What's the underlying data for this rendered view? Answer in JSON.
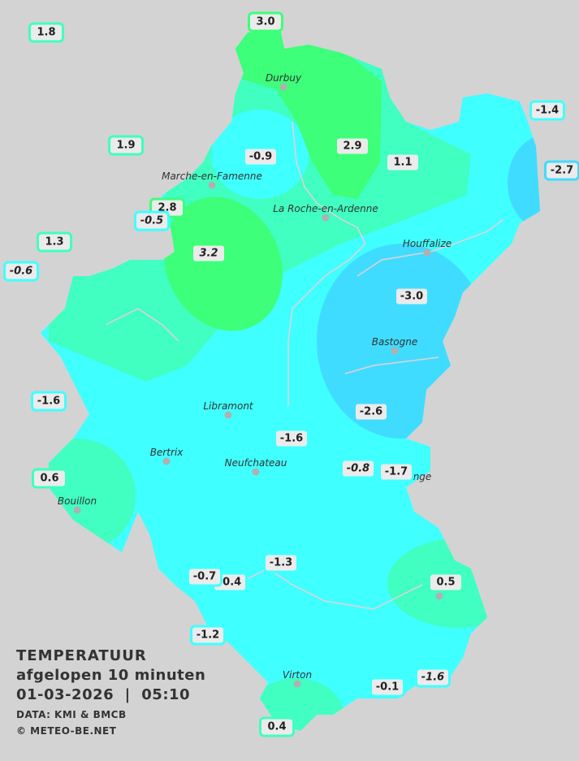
{
  "title": {
    "line1": "TEMPERATUUR",
    "line2": "afgelopen 10 minuten",
    "line3": "01-03-2026  |  05:10",
    "source": "DATA: KMI & BMCB",
    "copyright": "© METEO-BE.NET"
  },
  "colors": {
    "background": "#d3d3d3",
    "band_green": "#3dff7a",
    "band_mint": "#40ffc0",
    "band_cyan": "#40ffff",
    "band_blue": "#40dcff",
    "label_fill": "#ebebeb"
  },
  "cities": [
    {
      "name": "Durbuy"
    },
    {
      "name": "Marche-en-Famenne"
    },
    {
      "name": "La Roche-en-Ardenne"
    },
    {
      "name": "Houffalize"
    },
    {
      "name": "Bastogne"
    },
    {
      "name": "Libramont"
    },
    {
      "name": "Bertrix"
    },
    {
      "name": "Neufchateau"
    },
    {
      "name": "Bouillon"
    },
    {
      "name": "Virton"
    },
    {
      "name": "nge"
    }
  ],
  "stations": [
    {
      "value": "1.8",
      "band": "mint",
      "italic": false
    },
    {
      "value": "3.0",
      "band": "green",
      "italic": false
    },
    {
      "value": "1.9",
      "band": "mint",
      "italic": false
    },
    {
      "value": "-0.9",
      "band": "cyan",
      "italic": false
    },
    {
      "value": "2.9",
      "band": "green",
      "italic": false
    },
    {
      "value": "1.1",
      "band": "mint",
      "italic": false
    },
    {
      "value": "-1.4",
      "band": "cyan",
      "italic": false
    },
    {
      "value": "-2.7",
      "band": "blue",
      "italic": false
    },
    {
      "value": "2.8",
      "band": "green",
      "italic": false
    },
    {
      "value": "-0.5",
      "band": "cyan",
      "italic": true
    },
    {
      "value": "1.3",
      "band": "mint",
      "italic": false
    },
    {
      "value": "-0.6",
      "band": "cyan",
      "italic": true
    },
    {
      "value": "3.2",
      "band": "green",
      "italic": true
    },
    {
      "value": "-3.0",
      "band": "blue",
      "italic": false
    },
    {
      "value": "-1.6",
      "band": "cyan",
      "italic": false
    },
    {
      "value": "-2.6",
      "band": "blue",
      "italic": false
    },
    {
      "value": "-1.6",
      "band": "cyan",
      "italic": false
    },
    {
      "value": "0.6",
      "band": "mint",
      "italic": false
    },
    {
      "value": "-0.8",
      "band": "cyan",
      "italic": true
    },
    {
      "value": "-1.7",
      "band": "cyan",
      "italic": false
    },
    {
      "value": "-1.3",
      "band": "cyan",
      "italic": false
    },
    {
      "value": "-0.4",
      "band": "cyan",
      "italic": false
    },
    {
      "value": "-0.7",
      "band": "cyan",
      "italic": false
    },
    {
      "value": "0.5",
      "band": "mint",
      "italic": false
    },
    {
      "value": "-1.2",
      "band": "cyan",
      "italic": false
    },
    {
      "value": "-0.1",
      "band": "cyan",
      "italic": false
    },
    {
      "value": "-1.6",
      "band": "cyan",
      "italic": true
    },
    {
      "value": "0.4",
      "band": "mint",
      "italic": false
    }
  ]
}
